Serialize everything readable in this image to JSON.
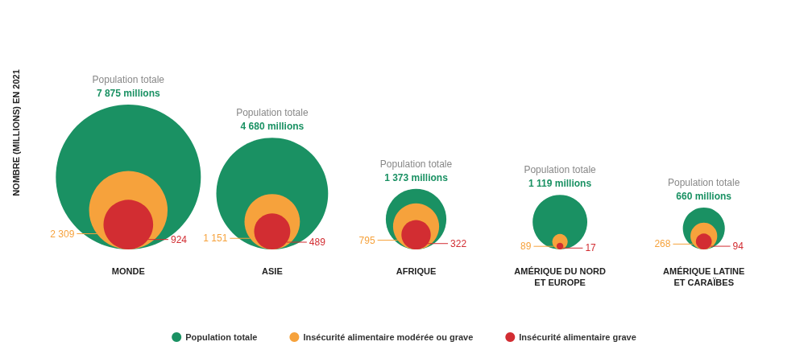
{
  "chart_data": {
    "type": "other",
    "ylabel": "NOMBRE (MILLIONS) EN 2021",
    "categories": [
      "MONDE",
      "ASIE",
      "AFRIQUE",
      "AMÉRIQUE DU NORD\nET EUROPE",
      "AMÉRIQUE LATINE\nET CARAÏBES"
    ],
    "series": [
      {
        "name": "Population totale",
        "color": "#1a9163",
        "values": [
          7875,
          4680,
          1373,
          1119,
          660
        ],
        "value_labels": [
          "7 875 millions",
          "4 680 millions",
          "1 373 millions",
          "1 119 millions",
          "660 millions"
        ]
      },
      {
        "name": "Insécurité alimentaire modérée ou grave",
        "color": "#f6a23c",
        "values": [
          2309,
          1151,
          795,
          89,
          268
        ],
        "value_labels": [
          "2 309",
          "1 151",
          "795",
          "89",
          "268"
        ]
      },
      {
        "name": "Insécurité alimentaire grave",
        "color": "#d22d32",
        "values": [
          924,
          489,
          322,
          17,
          94
        ],
        "value_labels": [
          "924",
          "489",
          "322",
          "17",
          "94"
        ]
      }
    ],
    "legend": "bottom"
  }
}
